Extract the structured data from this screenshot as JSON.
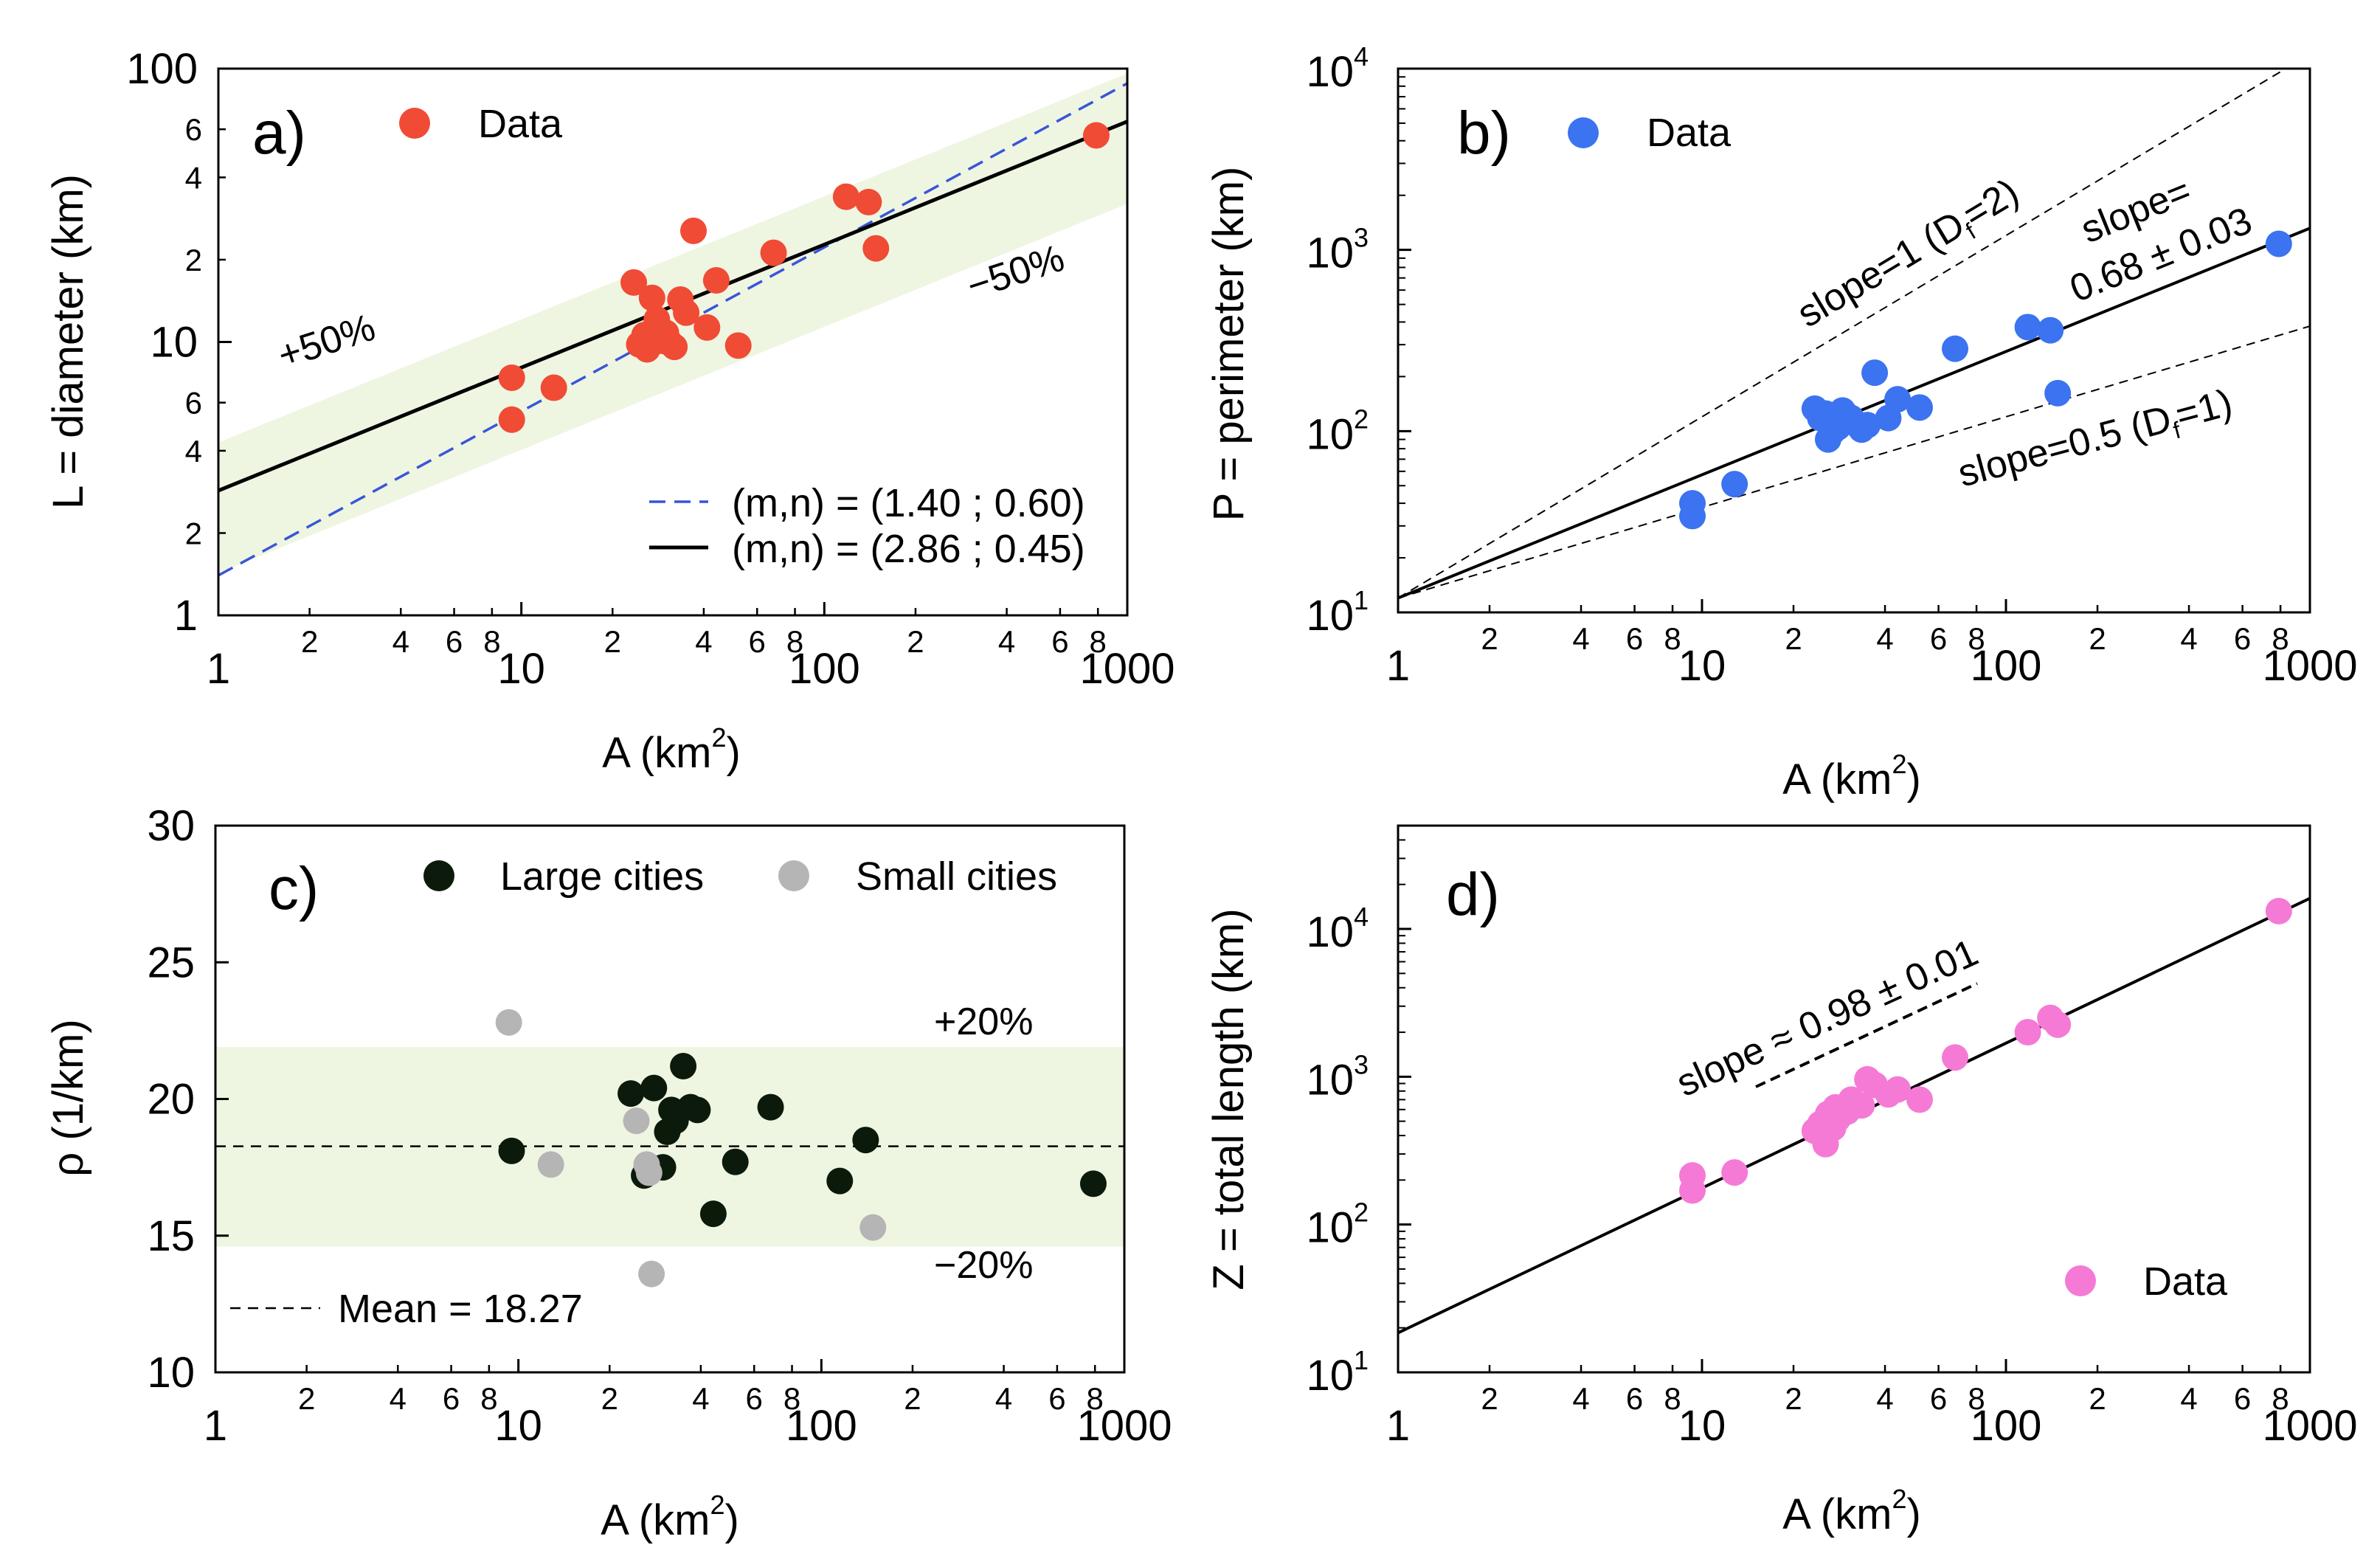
{
  "chart_data": [
    {
      "panel": "a",
      "type": "scatter",
      "scale": "log-log",
      "panel_label": "a)",
      "xlabel": "A (km",
      "xlabel_sup": "2",
      "xlabel_end": ")",
      "ylabel": "L = diameter (km)",
      "xlim": [
        1,
        1000
      ],
      "ylim": [
        1,
        100
      ],
      "x_major_ticks": [
        {
          "v": 1,
          "t": "1"
        },
        {
          "v": 10,
          "t": "10"
        },
        {
          "v": 100,
          "t": "100"
        },
        {
          "v": 1000,
          "t": "1000"
        }
      ],
      "x_minor_ticks": [
        {
          "v": 2,
          "t": "2"
        },
        {
          "v": 4,
          "t": "4"
        },
        {
          "v": 6,
          "t": "6"
        },
        {
          "v": 8,
          "t": "8"
        },
        {
          "v": 20,
          "t": "2"
        },
        {
          "v": 40,
          "t": "4"
        },
        {
          "v": 60,
          "t": "6"
        },
        {
          "v": 80,
          "t": "8"
        },
        {
          "v": 200,
          "t": "2"
        },
        {
          "v": 400,
          "t": "4"
        },
        {
          "v": 600,
          "t": "6"
        },
        {
          "v": 800,
          "t": "8"
        }
      ],
      "y_major_ticks": [
        {
          "v": 1,
          "t": "1"
        },
        {
          "v": 10,
          "t": "10"
        },
        {
          "v": 100,
          "t": "100"
        }
      ],
      "y_minor_ticks": [
        {
          "v": 2,
          "t": "2"
        },
        {
          "v": 4,
          "t": "4"
        },
        {
          "v": 6,
          "t": "6"
        },
        {
          "v": 20,
          "t": "2"
        },
        {
          "v": 40,
          "t": "4"
        },
        {
          "v": 60,
          "t": "6"
        }
      ],
      "band": {
        "lower_factor": 0.5,
        "upper_factor": 1.5,
        "about_line": "fit"
      },
      "lines": [
        {
          "name": "(m,n) = (1.40 ; 0.60)",
          "m": 1.4,
          "n": 0.6,
          "style": "dashed",
          "color": "#3a55d8"
        },
        {
          "name": "(m,n) = (2.86 ; 0.45)",
          "m": 2.86,
          "n": 0.45,
          "style": "solid",
          "color": "#000000"
        }
      ],
      "series": [
        {
          "name": "Data",
          "color": "#f04b35",
          "x": [
            9.3,
            9.3,
            12.8,
            23.5,
            24.5,
            25.5,
            26,
            27,
            27.5,
            28,
            29,
            30,
            31,
            32,
            33.5,
            35,
            37,
            41,
            44,
            52,
            68,
            118,
            140,
            148,
            790
          ],
          "y": [
            5.2,
            7.4,
            6.8,
            16.5,
            9.8,
            10.6,
            9.4,
            14.5,
            11.2,
            12.1,
            10.1,
            10.8,
            9.9,
            9.6,
            14.3,
            12.8,
            25.5,
            11.3,
            16.8,
            9.7,
            21.2,
            34,
            32.5,
            22,
            57
          ]
        }
      ],
      "annotations": [
        "+50%",
        "−50%"
      ]
    },
    {
      "panel": "b",
      "type": "scatter",
      "scale": "log-log",
      "panel_label": "b)",
      "xlabel": "A (km",
      "xlabel_sup": "2",
      "xlabel_end": ")",
      "ylabel": "P = perimeter (km)",
      "xlim": [
        1,
        1000
      ],
      "ylim": [
        10,
        10000
      ],
      "x_major_ticks": [
        {
          "v": 1,
          "t": "1"
        },
        {
          "v": 10,
          "t": "10"
        },
        {
          "v": 100,
          "t": "100"
        },
        {
          "v": 1000,
          "t": "1000"
        }
      ],
      "x_minor_ticks": [
        {
          "v": 2,
          "t": "2"
        },
        {
          "v": 4,
          "t": "4"
        },
        {
          "v": 6,
          "t": "6"
        },
        {
          "v": 8,
          "t": "8"
        },
        {
          "v": 20,
          "t": "2"
        },
        {
          "v": 40,
          "t": "4"
        },
        {
          "v": 60,
          "t": "6"
        },
        {
          "v": 80,
          "t": "8"
        },
        {
          "v": 200,
          "t": "2"
        },
        {
          "v": 400,
          "t": "4"
        },
        {
          "v": 600,
          "t": "6"
        },
        {
          "v": 800,
          "t": "8"
        }
      ],
      "y_major_ticks": [
        {
          "v": 10,
          "b": "10",
          "e": "1"
        },
        {
          "v": 100,
          "b": "10",
          "e": "2"
        },
        {
          "v": 1000,
          "b": "10",
          "e": "3"
        },
        {
          "v": 10000,
          "b": "10",
          "e": "4"
        }
      ],
      "lines": [
        {
          "name": "slope=1 (Df=2)",
          "a": 12,
          "slope": 1,
          "style": "dashed",
          "color": "#000000"
        },
        {
          "name": "slope=0.68 ± 0.03",
          "a": 12,
          "slope": 0.68,
          "style": "solid",
          "color": "#000000"
        },
        {
          "name": "slope=0.5 (Df=1)",
          "a": 12,
          "slope": 0.5,
          "style": "dashed",
          "color": "#000000"
        }
      ],
      "series": [
        {
          "name": "Data",
          "color": "#3b73f0",
          "x": [
            9.3,
            9.3,
            12.8,
            23.5,
            24.5,
            25.5,
            26,
            27,
            27.5,
            28,
            29,
            30,
            31,
            32,
            33.5,
            35,
            37,
            41,
            44,
            52,
            68,
            118,
            140,
            148,
            790
          ],
          "y": [
            34,
            40,
            51,
            133,
            118,
            125,
            90,
            100,
            113,
            105,
            130,
            122,
            118,
            110,
            102,
            108,
            210,
            118,
            150,
            135,
            285,
            375,
            360,
            162,
            1080
          ]
        }
      ],
      "annotations": {
        "slope1": "slope=1 (D",
        "slope1_sub": "f",
        "slope1_end": "=2)",
        "fit1": "slope=",
        "fit2": "0.68 ± 0.03",
        "slope05": "slope=0.5 (D",
        "slope05_sub": "f",
        "slope05_end": "=1)"
      }
    },
    {
      "panel": "c",
      "type": "scatter",
      "scale": "log-x",
      "panel_label": "c)",
      "xlabel": "A (km",
      "xlabel_sup": "2",
      "xlabel_end": ")",
      "ylabel": "ρ (1/km)",
      "xlim": [
        1,
        1000
      ],
      "ylim": [
        10,
        30
      ],
      "x_major_ticks": [
        {
          "v": 1,
          "t": "1"
        },
        {
          "v": 10,
          "t": "10"
        },
        {
          "v": 100,
          "t": "100"
        },
        {
          "v": 1000,
          "t": "1000"
        }
      ],
      "x_minor_ticks": [
        {
          "v": 2,
          "t": "2"
        },
        {
          "v": 4,
          "t": "4"
        },
        {
          "v": 6,
          "t": "6"
        },
        {
          "v": 8,
          "t": "8"
        },
        {
          "v": 20,
          "t": "2"
        },
        {
          "v": 40,
          "t": "4"
        },
        {
          "v": 60,
          "t": "6"
        },
        {
          "v": 80,
          "t": "8"
        },
        {
          "v": 200,
          "t": "2"
        },
        {
          "v": 400,
          "t": "4"
        },
        {
          "v": 600,
          "t": "6"
        },
        {
          "v": 800,
          "t": "8"
        }
      ],
      "y_major_ticks": [
        {
          "v": 10,
          "t": "10"
        },
        {
          "v": 15,
          "t": "15"
        },
        {
          "v": 20,
          "t": "20"
        },
        {
          "v": 25,
          "t": "25"
        },
        {
          "v": 30,
          "t": "30"
        }
      ],
      "mean": 18.27,
      "band": {
        "lower": 14.6,
        "upper": 21.9
      },
      "series": [
        {
          "name": "Large cities",
          "color": "#0c1a0c",
          "x": [
            9.5,
            23.5,
            26,
            28,
            30,
            31,
            32,
            33,
            35,
            37,
            39,
            44,
            52,
            68,
            115,
            140,
            790
          ],
          "y": [
            18.1,
            20.2,
            17.2,
            20.4,
            17.5,
            18.8,
            19.6,
            19.2,
            21.2,
            19.7,
            19.6,
            15.8,
            17.7,
            19.7,
            17.0,
            18.5,
            16.9
          ]
        },
        {
          "name": "Small cities",
          "color": "#b5b5b5",
          "x": [
            9.3,
            12.8,
            24.5,
            26.5,
            27,
            27.5,
            148
          ],
          "y": [
            22.8,
            17.6,
            19.2,
            17.6,
            17.3,
            13.6,
            15.3
          ]
        }
      ],
      "annotations": [
        "+20%",
        "−20%"
      ],
      "mean_label": "Mean = 18.27"
    },
    {
      "panel": "d",
      "type": "scatter",
      "scale": "log-log",
      "panel_label": "d)",
      "xlabel": "A (km",
      "xlabel_sup": "2",
      "xlabel_end": ")",
      "ylabel": "Z = total length (km)",
      "xlim": [
        1,
        1000
      ],
      "ylim": [
        10,
        50000
      ],
      "x_major_ticks": [
        {
          "v": 1,
          "t": "1"
        },
        {
          "v": 10,
          "t": "10"
        },
        {
          "v": 100,
          "t": "100"
        },
        {
          "v": 1000,
          "t": "1000"
        }
      ],
      "x_minor_ticks": [
        {
          "v": 2,
          "t": "2"
        },
        {
          "v": 4,
          "t": "4"
        },
        {
          "v": 6,
          "t": "6"
        },
        {
          "v": 8,
          "t": "8"
        },
        {
          "v": 20,
          "t": "2"
        },
        {
          "v": 40,
          "t": "4"
        },
        {
          "v": 60,
          "t": "6"
        },
        {
          "v": 80,
          "t": "8"
        },
        {
          "v": 200,
          "t": "2"
        },
        {
          "v": 400,
          "t": "4"
        },
        {
          "v": 600,
          "t": "6"
        },
        {
          "v": 800,
          "t": "8"
        }
      ],
      "y_major_ticks": [
        {
          "v": 10,
          "b": "10",
          "e": "1"
        },
        {
          "v": 100,
          "b": "10",
          "e": "2"
        },
        {
          "v": 1000,
          "b": "10",
          "e": "3"
        },
        {
          "v": 10000,
          "b": "10",
          "e": "4"
        }
      ],
      "lines": [
        {
          "name": "fit",
          "a": 18.5,
          "slope": 0.98,
          "style": "solid",
          "color": "#000000"
        }
      ],
      "series": [
        {
          "name": "Data",
          "color": "#f57ad6",
          "x": [
            9.3,
            9.3,
            12.8,
            23.5,
            24.5,
            25.5,
            26,
            27,
            27.5,
            28,
            29,
            30,
            31,
            32,
            33.5,
            35,
            37,
            41,
            44,
            52,
            68,
            118,
            140,
            148,
            790
          ],
          "y": [
            170,
            215,
            225,
            430,
            480,
            350,
            560,
            450,
            620,
            520,
            600,
            580,
            700,
            650,
            640,
            960,
            880,
            760,
            820,
            700,
            1350,
            2000,
            2500,
            2250,
            13200
          ]
        }
      ],
      "annotations": {
        "slope": "slope ≈ 0.98 ± 0.01"
      }
    }
  ]
}
